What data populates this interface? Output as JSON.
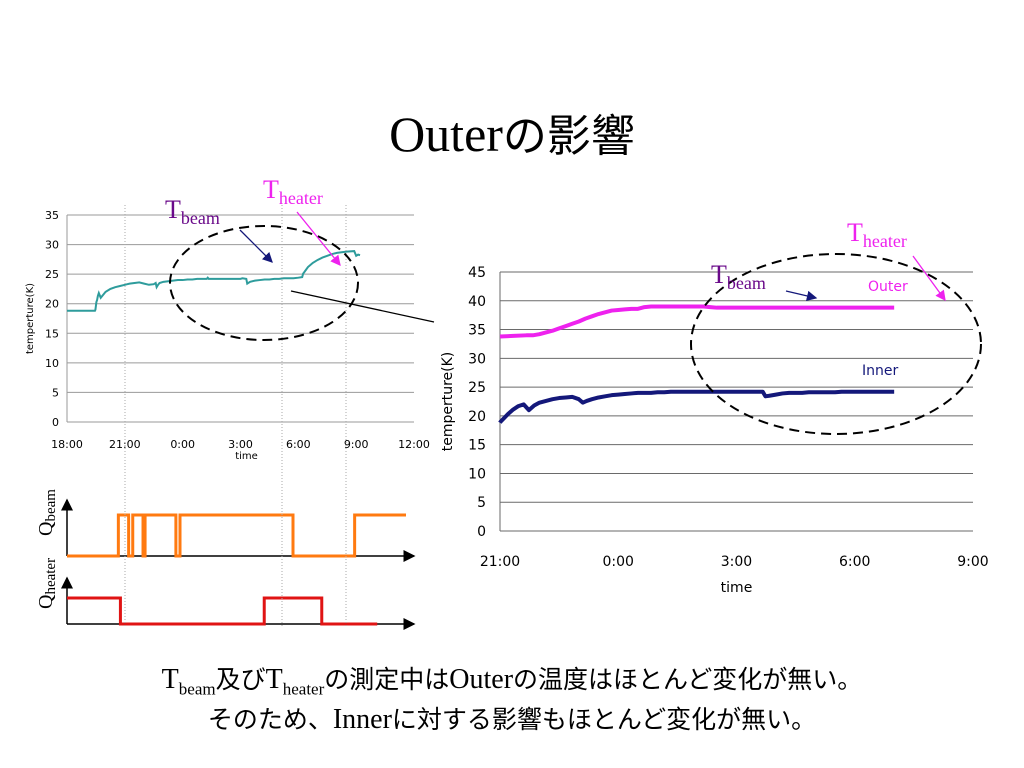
{
  "title": {
    "latin": "Outer",
    "japanese": "の影響"
  },
  "colors": {
    "teal": "#2e9c9c",
    "magenta": "#ee22ee",
    "navy": "#14187a",
    "orange": "#ff7a10",
    "red": "#e01414",
    "purple": "#6a0a8a"
  },
  "chart_data": [
    {
      "type": "line",
      "ylabel": "temperture(K)",
      "xlabel": "time",
      "ylim": [
        0,
        35
      ],
      "yticks": [
        "0",
        "5",
        "10",
        "15",
        "20",
        "25",
        "30",
        "35"
      ],
      "xticks": [
        "18:00",
        "21:00",
        "0:00",
        "3:00",
        "6:00",
        "9:00",
        "12:00"
      ],
      "series": [
        {
          "x": [
            0,
            1,
            2,
            2.9,
            2.95,
            3.05,
            3.12,
            3.2,
            3.3,
            3.5,
            3.8,
            4,
            4.5,
            5,
            5.5,
            6,
            6.5,
            7,
            7.5,
            8,
            8.5,
            9,
            9.2,
            9.3,
            9.45,
            9.6,
            10,
            10.5,
            11,
            11.5,
            12,
            12.5,
            13,
            13.5,
            14,
            14.5,
            14.6,
            14.65,
            14.7,
            15,
            15.5,
            16,
            16.5,
            17,
            17.5,
            18,
            18.2,
            18.6,
            18.7,
            19,
            19.5,
            20,
            20.5,
            21,
            21.5,
            22,
            22.5,
            23,
            23.5,
            24,
            24.4,
            24.5,
            24.6,
            25,
            25.5,
            26,
            26.5,
            27,
            27.5,
            28,
            28.5,
            29,
            29.8,
            30,
            30.2,
            30.4
          ],
          "values": [
            18.8,
            18.8,
            18.8,
            18.8,
            19.0,
            20.3,
            20.6,
            21.3,
            21.8,
            21.0,
            21.6,
            22.0,
            22.5,
            22.8,
            23.0,
            23.2,
            23.4,
            23.5,
            23.6,
            23.4,
            23.2,
            23.3,
            23.5,
            22.8,
            23.2,
            23.5,
            23.7,
            23.8,
            23.9,
            24.0,
            24.0,
            24.1,
            24.1,
            24.2,
            24.2,
            24.2,
            24.4,
            24.3,
            24.2,
            24.2,
            24.2,
            24.2,
            24.2,
            24.2,
            24.2,
            24.2,
            24.3,
            24.2,
            23.4,
            23.7,
            23.9,
            24.0,
            24.1,
            24.1,
            24.2,
            24.2,
            24.3,
            24.3,
            24.3,
            24.4,
            24.5,
            25.1,
            25.3,
            26.2,
            26.9,
            27.4,
            27.8,
            28.1,
            28.4,
            28.6,
            28.7,
            28.8,
            28.9,
            28.1,
            28.3,
            28.2
          ]
        }
      ],
      "annotations": [
        {
          "label": "T",
          "sub": "beam"
        },
        {
          "label": "T",
          "sub": "heater"
        }
      ]
    },
    {
      "type": "line",
      "ylabel": "temperture(K)",
      "xlabel": "time",
      "ylim": [
        0,
        45
      ],
      "yticks": [
        "0",
        "5",
        "10",
        "15",
        "20",
        "25",
        "30",
        "35",
        "40",
        "45"
      ],
      "xticks": [
        "21:00",
        "0:00",
        "3:00",
        "6:00",
        "9:00"
      ],
      "series": [
        {
          "name": "Outer",
          "x": [
            0,
            1,
            2,
            2.5,
            3,
            3.5,
            4,
            4.5,
            5,
            5.5,
            6,
            6.5,
            7,
            7.5,
            8,
            8.5,
            9,
            9.5,
            10,
            10.5,
            11,
            11.5,
            12,
            12.5,
            13,
            13.5,
            14,
            14.5,
            15,
            15.5,
            16,
            16.5,
            17,
            17.5,
            18,
            18.5,
            19,
            19.5,
            20,
            20.5,
            21,
            21.5,
            22,
            22.5,
            23,
            23.5,
            24,
            24.5,
            25,
            25.5,
            26,
            26.5,
            27,
            27.5,
            28,
            28.5,
            29,
            29.5,
            30
          ],
          "values": [
            33.8,
            33.9,
            34.0,
            34.0,
            34.2,
            34.5,
            34.8,
            35.2,
            35.6,
            36.0,
            36.4,
            36.9,
            37.3,
            37.7,
            38.0,
            38.3,
            38.4,
            38.5,
            38.6,
            38.6,
            38.9,
            39.0,
            39.0,
            39.0,
            39.0,
            39.0,
            39.0,
            39.0,
            39.0,
            39.0,
            38.9,
            38.8,
            38.8,
            38.8,
            38.8,
            38.8,
            38.8,
            38.8,
            38.8,
            38.8,
            38.8,
            38.8,
            38.8,
            38.8,
            38.8,
            38.8,
            38.8,
            38.8,
            38.8,
            38.8,
            38.8,
            38.8,
            38.8,
            38.8,
            38.8,
            38.8,
            38.8,
            38.8,
            38.8
          ]
        },
        {
          "name": "Inner",
          "x": [
            0,
            0.05,
            0.3,
            0.6,
            1,
            1.4,
            1.8,
            2.2,
            2.6,
            3,
            3.5,
            4,
            4.5,
            5,
            5.5,
            6,
            6.3,
            6.6,
            7,
            7.5,
            8,
            8.5,
            9,
            9.5,
            10,
            10.5,
            11,
            11.5,
            12,
            12.5,
            13,
            13.5,
            14,
            14.5,
            15,
            15.5,
            16,
            16.5,
            17,
            17.5,
            18,
            18.5,
            19,
            19.5,
            20,
            20.2,
            20.5,
            21,
            21.5,
            22,
            22.5,
            23,
            23.5,
            24,
            24.5,
            25,
            25.5,
            26,
            26.5,
            27,
            27.5,
            28,
            28.5,
            29,
            29.5,
            30
          ],
          "values": [
            18.8,
            19.0,
            19.6,
            20.3,
            21.1,
            21.7,
            22.0,
            21.0,
            21.8,
            22.3,
            22.6,
            22.9,
            23.1,
            23.2,
            23.3,
            22.9,
            22.3,
            22.6,
            22.9,
            23.2,
            23.4,
            23.6,
            23.7,
            23.8,
            23.9,
            24.0,
            24.0,
            24.0,
            24.1,
            24.1,
            24.2,
            24.2,
            24.2,
            24.2,
            24.2,
            24.2,
            24.2,
            24.2,
            24.2,
            24.2,
            24.2,
            24.2,
            24.2,
            24.2,
            24.2,
            23.4,
            23.5,
            23.7,
            23.9,
            24.0,
            24.0,
            24.0,
            24.1,
            24.1,
            24.1,
            24.1,
            24.1,
            24.2,
            24.2,
            24.2,
            24.2,
            24.2,
            24.2,
            24.2,
            24.2,
            24.2
          ]
        }
      ],
      "annotations": [
        {
          "label": "T",
          "sub": "beam"
        },
        {
          "label": "T",
          "sub": "heater"
        }
      ]
    },
    {
      "type": "line",
      "ylabel": "Q",
      "ylabel_sub": "beam",
      "series": [
        {
          "x": [
            0,
            2.5,
            2.5,
            3.0,
            3.0,
            3.2,
            3.2,
            3.7,
            3.7,
            3.8,
            3.8,
            5.3,
            5.3,
            5.5,
            5.5,
            11.0,
            11.0,
            14.0,
            14.0,
            16.5
          ],
          "values": [
            0,
            0,
            1,
            1,
            0,
            0,
            1,
            1,
            0,
            0,
            1,
            1,
            0,
            0,
            1,
            1,
            0,
            0,
            1,
            1
          ]
        }
      ]
    },
    {
      "type": "line",
      "ylabel": "Q",
      "ylabel_sub": "heater",
      "series": [
        {
          "x": [
            0,
            2.6,
            2.6,
            9.6,
            9.6,
            12.4,
            12.4,
            15.1
          ],
          "values": [
            1,
            1,
            0,
            0,
            1,
            1,
            0,
            0
          ]
        }
      ]
    }
  ],
  "caption": {
    "line1": [
      {
        "t": "T",
        "latin": true
      },
      {
        "t": "beam",
        "sub": true
      },
      {
        "t": "及び"
      },
      {
        "t": "T",
        "latin": true
      },
      {
        "t": "heater",
        "sub": true
      },
      {
        "t": "の測定中は"
      },
      {
        "t": "Outer",
        "latin": true
      },
      {
        "t": "の温度はほとんど変化が無い。"
      }
    ],
    "line2": [
      {
        "t": "そのため、"
      },
      {
        "t": "Inner",
        "latin": true
      },
      {
        "t": "に対する影響もほとんど変化が無い。"
      }
    ]
  }
}
